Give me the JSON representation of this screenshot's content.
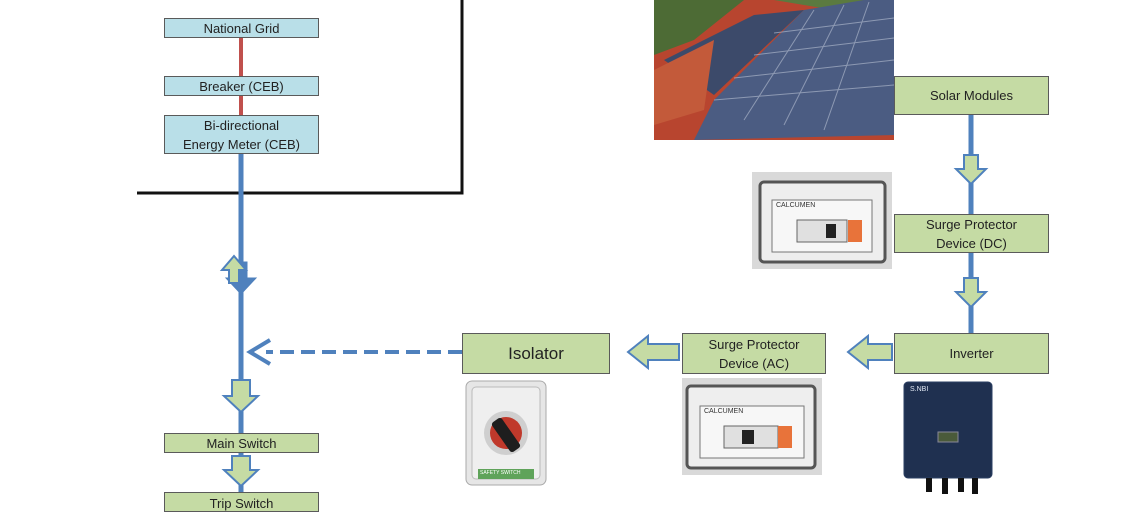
{
  "boxes": {
    "national_grid": "National Grid",
    "breaker": "Breaker (CEB)",
    "meter_line1": "Bi-directional",
    "meter_line2": "Energy Meter (CEB)",
    "main_switch": "Main Switch",
    "trip_switch": "Trip Switch",
    "solar_modules": "Solar Modules",
    "spd_dc_line1": "Surge Protector",
    "spd_dc_line2": "Device (DC)",
    "inverter": "Inverter",
    "spd_ac_line1": "Surge Protector",
    "spd_ac_line2": "Device (AC)",
    "isolator": "Isolator"
  },
  "photo_labels": {
    "spd_dc_brand": "CALCUMEN",
    "spd_ac_brand": "CALCUMEN",
    "isolator_label": "SAFETY SWITCH",
    "inverter_brand": "S.NBI"
  },
  "colors": {
    "grid_box": "#b9dfe8",
    "component_box": "#c5dba4",
    "grid_line": "#c0504d",
    "flow_line": "#4f81bd",
    "arrow_fill": "#c5dba4",
    "arrow_stroke": "#4f81bd"
  }
}
